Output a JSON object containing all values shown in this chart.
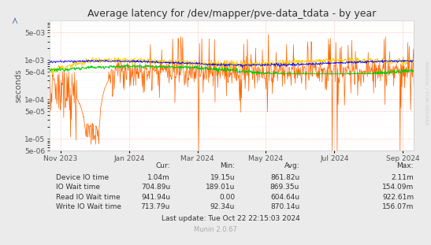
{
  "title": "Average latency for /dev/mapper/pve-data_tdata - by year",
  "ylabel": "seconds",
  "bg_color": "#EBEBEB",
  "plot_bg_color": "#FFFFFF",
  "grid_major_color": "#FF9999",
  "grid_minor_color": "#FFDDDD",
  "ylim_min": 5e-06,
  "ylim_max": 0.01,
  "x_tick_labels": [
    "Nov 2023",
    "Jan 2024",
    "Mar 2024",
    "May 2024",
    "Jul 2024",
    "Sep 2024"
  ],
  "ytick_labels": [
    "5e-06",
    "1e-05",
    "5e-05",
    "1e-04",
    "5e-04",
    "1e-03",
    "5e-03"
  ],
  "ytick_vals": [
    5e-06,
    1e-05,
    5e-05,
    0.0001,
    0.0005,
    0.001,
    0.005
  ],
  "legend_entries": [
    {
      "label": "Device IO time",
      "color": "#00CC00"
    },
    {
      "label": "IO Wait time",
      "color": "#0000FF"
    },
    {
      "label": "Read IO Wait time",
      "color": "#FF6600"
    },
    {
      "label": "Write IO Wait time",
      "color": "#FFCC00"
    }
  ],
  "cur_vals": [
    "1.04m",
    "704.89u",
    "941.94u",
    "713.79u"
  ],
  "min_vals": [
    "19.15u",
    "189.01u",
    "0.00",
    "92.34u"
  ],
  "avg_vals": [
    "861.82u",
    "869.35u",
    "604.64u",
    "870.14u"
  ],
  "max_vals": [
    "2.11m",
    "154.09m",
    "922.61m",
    "156.07m"
  ],
  "last_update": "Last update: Tue Oct 22 22:15:03 2024",
  "watermark": "Munin 2.0.67",
  "rrdtool_label": "RRDTOOL / TOBI OETIKER"
}
